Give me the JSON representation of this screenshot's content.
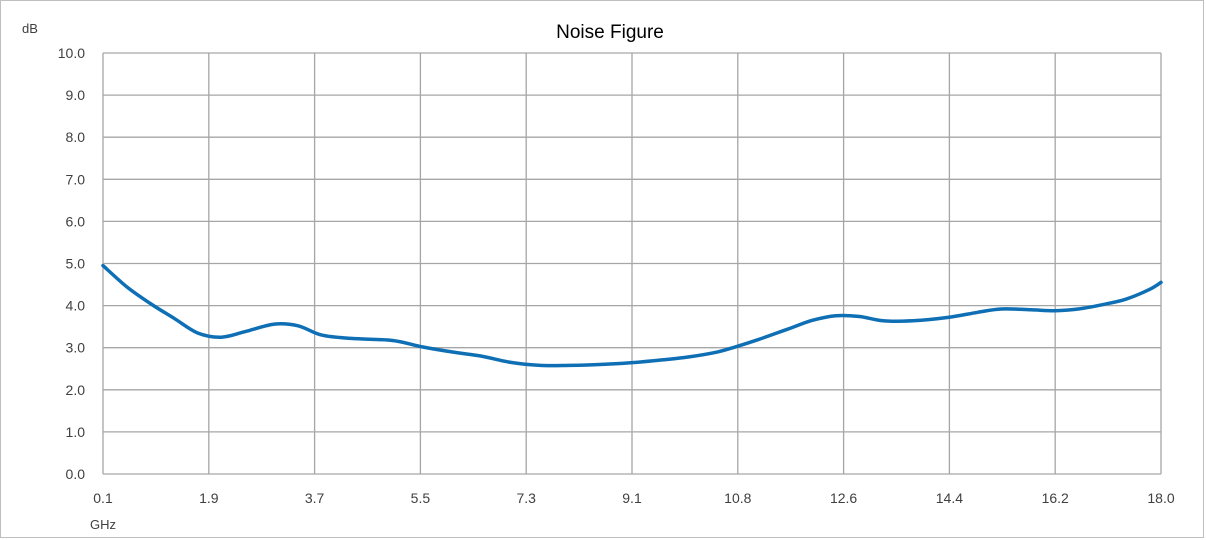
{
  "chart_data": {
    "type": "line",
    "title": "Noise Figure",
    "ylabel": "dB",
    "xlabel": "GHz",
    "xlim": [
      0.1,
      18.0
    ],
    "ylim": [
      0,
      10
    ],
    "grid": true,
    "x_ticks": [
      "0.1",
      "1.9",
      "3.7",
      "5.5",
      "7.3",
      "9.1",
      "10.8",
      "12.6",
      "14.4",
      "16.2",
      "18.0"
    ],
    "y_ticks": [
      "0.0",
      "1.0",
      "2.0",
      "3.0",
      "4.0",
      "5.0",
      "6.0",
      "7.0",
      "8.0",
      "9.0",
      "10.0"
    ],
    "series": [
      {
        "color": "#0f6fb5",
        "points": [
          [
            0.1,
            4.95
          ],
          [
            0.5,
            4.45
          ],
          [
            0.9,
            4.05
          ],
          [
            1.3,
            3.7
          ],
          [
            1.7,
            3.35
          ],
          [
            2.1,
            3.25
          ],
          [
            2.5,
            3.38
          ],
          [
            3.0,
            3.56
          ],
          [
            3.4,
            3.52
          ],
          [
            3.8,
            3.3
          ],
          [
            4.3,
            3.22
          ],
          [
            5.0,
            3.17
          ],
          [
            5.5,
            3.02
          ],
          [
            6.0,
            2.9
          ],
          [
            6.5,
            2.8
          ],
          [
            7.0,
            2.65
          ],
          [
            7.5,
            2.58
          ],
          [
            8.0,
            2.58
          ],
          [
            8.5,
            2.6
          ],
          [
            9.0,
            2.64
          ],
          [
            9.5,
            2.7
          ],
          [
            10.0,
            2.78
          ],
          [
            10.5,
            2.9
          ],
          [
            10.8,
            3.02
          ],
          [
            11.2,
            3.2
          ],
          [
            11.7,
            3.45
          ],
          [
            12.1,
            3.65
          ],
          [
            12.5,
            3.76
          ],
          [
            12.9,
            3.74
          ],
          [
            13.3,
            3.64
          ],
          [
            13.8,
            3.64
          ],
          [
            14.4,
            3.72
          ],
          [
            14.9,
            3.84
          ],
          [
            15.3,
            3.92
          ],
          [
            15.8,
            3.9
          ],
          [
            16.2,
            3.88
          ],
          [
            16.6,
            3.92
          ],
          [
            17.0,
            4.02
          ],
          [
            17.4,
            4.15
          ],
          [
            17.8,
            4.38
          ],
          [
            18.0,
            4.55
          ]
        ]
      }
    ]
  }
}
